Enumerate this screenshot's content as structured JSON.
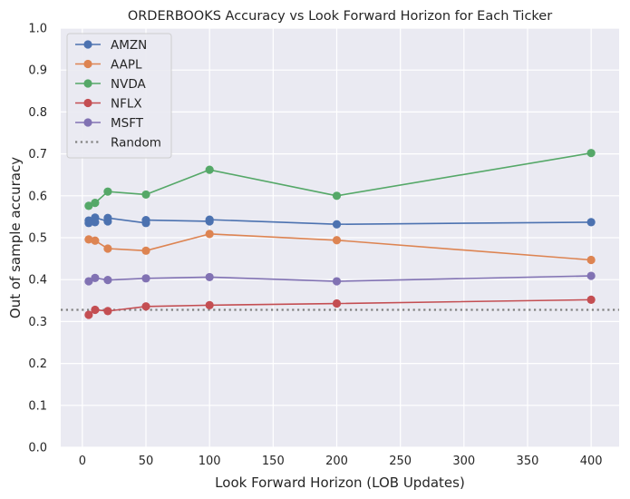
{
  "chart_data": {
    "type": "line",
    "title": "ORDERBOOKS Accuracy vs Look Forward Horizon for Each Ticker",
    "xlabel": "Look Forward Horizon (LOB Updates)",
    "ylabel": "Out of sample accuracy",
    "xlim": [
      -17,
      422
    ],
    "ylim": [
      0,
      1.0
    ],
    "xticks": [
      0,
      50,
      100,
      150,
      200,
      250,
      300,
      350,
      400
    ],
    "xtick_labels": [
      "0",
      "50",
      "100",
      "150",
      "200",
      "250",
      "300",
      "350",
      "400"
    ],
    "yticks": [
      0,
      0.1,
      0.2,
      0.3,
      0.4,
      0.5,
      0.6,
      0.7,
      0.8,
      0.9,
      1.0
    ],
    "ytick_labels": [
      "0.0",
      "0.1",
      "0.2",
      "0.3",
      "0.4",
      "0.5",
      "0.6",
      "0.7",
      "0.8",
      "0.9",
      "1.0"
    ],
    "grid": true,
    "legend_position": "top-left",
    "series": [
      {
        "name": "AMZN",
        "color": "#4c72b0",
        "points": [
          [
            5,
            0.535
          ],
          [
            5,
            0.541
          ],
          [
            10,
            0.537
          ],
          [
            10,
            0.548
          ],
          [
            20,
            0.539
          ],
          [
            20,
            0.547
          ],
          [
            50,
            0.535
          ],
          [
            50,
            0.542
          ],
          [
            100,
            0.539
          ],
          [
            100,
            0.543
          ],
          [
            200,
            0.532
          ],
          [
            400,
            0.537
          ]
        ]
      },
      {
        "name": "AAPL",
        "color": "#dd8452",
        "points": [
          [
            5,
            0.496
          ],
          [
            10,
            0.493
          ],
          [
            20,
            0.474
          ],
          [
            50,
            0.469
          ],
          [
            100,
            0.509
          ],
          [
            200,
            0.494
          ],
          [
            400,
            0.447
          ]
        ]
      },
      {
        "name": "NVDA",
        "color": "#55a868",
        "points": [
          [
            5,
            0.576
          ],
          [
            10,
            0.583
          ],
          [
            20,
            0.61
          ],
          [
            50,
            0.603
          ],
          [
            100,
            0.662
          ],
          [
            200,
            0.6
          ],
          [
            400,
            0.702
          ]
        ]
      },
      {
        "name": "NFLX",
        "color": "#c44e52",
        "points": [
          [
            5,
            0.316
          ],
          [
            10,
            0.328
          ],
          [
            20,
            0.325
          ],
          [
            50,
            0.336
          ],
          [
            100,
            0.339
          ],
          [
            200,
            0.343
          ],
          [
            400,
            0.352
          ]
        ]
      },
      {
        "name": "MSFT",
        "color": "#8172b3",
        "points": [
          [
            5,
            0.396
          ],
          [
            10,
            0.404
          ],
          [
            20,
            0.399
          ],
          [
            50,
            0.403
          ],
          [
            100,
            0.406
          ],
          [
            200,
            0.396
          ],
          [
            400,
            0.409
          ]
        ]
      }
    ],
    "reference_line": {
      "name": "Random",
      "value": 0.328,
      "color": "#808080",
      "style": "dotted"
    }
  }
}
